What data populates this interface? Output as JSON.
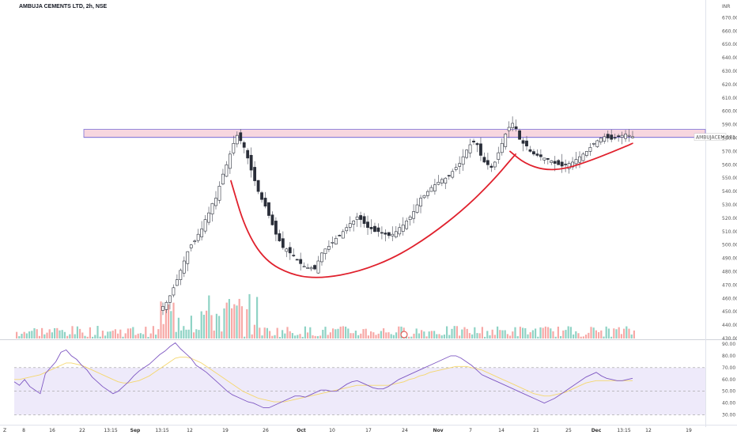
{
  "header": {
    "title": "AMBUJA CEMENTS LTD, 2h, NSE"
  },
  "chart_data": {
    "type": "candlestick",
    "currency_label": "INR",
    "price_axis": {
      "min": 430,
      "max": 675,
      "ticks": [
        "670.00",
        "660.00",
        "650.00",
        "640.00",
        "630.00",
        "620.00",
        "610.00",
        "600.00",
        "590.00",
        "580.00",
        "570.00",
        "560.00",
        "550.00",
        "540.00",
        "530.00",
        "520.00",
        "510.00",
        "500.00",
        "490.00",
        "480.00",
        "470.00",
        "460.00",
        "450.00",
        "440.00",
        "430.00"
      ]
    },
    "rsi_axis": {
      "min": 25,
      "max": 92,
      "ticks": [
        "90.00",
        "80.00",
        "70.00",
        "60.00",
        "50.00",
        "40.00",
        "30.00"
      ],
      "band": [
        30,
        70
      ],
      "mid": 50
    },
    "resistance_zone": {
      "low": 580.5,
      "high": 586.5,
      "label": "AMBUJACEM",
      "value": "581.35"
    },
    "x_axis": {
      "ticks": [
        "8",
        "16",
        "22",
        "13:15",
        "Sep",
        "13:15",
        "12",
        "19",
        "26",
        "Oct",
        "10",
        "17",
        "24",
        "Nov",
        "7",
        "14",
        "21",
        "25",
        "Dec",
        "13:15",
        "12",
        "19"
      ]
    },
    "price_series": [
      454,
      457,
      462,
      468,
      474,
      481,
      488,
      495,
      500,
      503,
      508,
      512,
      519,
      524,
      531,
      535,
      544,
      553,
      560,
      568,
      576,
      582,
      578,
      573,
      565,
      556,
      548,
      540,
      534,
      529,
      522,
      515,
      508,
      503,
      498,
      497,
      494,
      492,
      489,
      486,
      484,
      483,
      483,
      482,
      488,
      494,
      497,
      499,
      502,
      505,
      507,
      510,
      513,
      516,
      518,
      521,
      519,
      516,
      513,
      512,
      510,
      510,
      509,
      508,
      507,
      508,
      510,
      513,
      515,
      518,
      521,
      525,
      530,
      535,
      537,
      540,
      543,
      545,
      547,
      549,
      550,
      552,
      555,
      558,
      561,
      566,
      571,
      575,
      577,
      575,
      567,
      562,
      560,
      558,
      562,
      569,
      576,
      583,
      588,
      591,
      587,
      579,
      576,
      574,
      570,
      568,
      567,
      566,
      565,
      564,
      563,
      561,
      560,
      559,
      560,
      561,
      562,
      564,
      566,
      568,
      570,
      573,
      576,
      578,
      580,
      581,
      580,
      579,
      580,
      581,
      582,
      583,
      582,
      581
    ],
    "rsi_series": [
      58,
      55,
      60,
      54,
      51,
      48,
      65,
      70,
      75,
      83,
      85,
      80,
      77,
      72,
      68,
      62,
      58,
      54,
      51,
      48,
      50,
      54,
      58,
      63,
      67,
      70,
      73,
      77,
      81,
      84,
      88,
      91,
      86,
      82,
      78,
      72,
      69,
      66,
      62,
      58,
      54,
      50,
      47,
      45,
      43,
      41,
      40,
      38,
      36,
      36,
      38,
      40,
      42,
      44,
      46,
      46,
      45,
      47,
      49,
      51,
      51,
      50,
      50,
      53,
      56,
      58,
      59,
      57,
      55,
      53,
      52,
      52,
      54,
      57,
      60,
      62,
      64,
      66,
      68,
      70,
      72,
      74,
      76,
      78,
      80,
      80,
      78,
      75,
      72,
      68,
      64,
      62,
      60,
      58,
      56,
      54,
      52,
      50,
      48,
      46,
      44,
      42,
      40,
      42,
      44,
      47,
      50,
      53,
      56,
      59,
      62,
      64,
      66,
      63,
      61,
      60,
      59,
      59,
      60,
      61
    ],
    "rsi_ma_series": [
      60,
      60,
      61,
      62,
      63,
      64,
      66,
      68,
      70,
      72,
      74,
      74,
      73,
      72,
      70,
      68,
      66,
      64,
      62,
      60,
      58,
      57,
      57,
      58,
      59,
      61,
      63,
      66,
      69,
      72,
      75,
      78,
      79,
      79,
      78,
      76,
      74,
      71,
      68,
      65,
      62,
      59,
      56,
      53,
      50,
      48,
      46,
      44,
      43,
      42,
      41,
      41,
      41,
      42,
      43,
      44,
      45,
      46,
      47,
      48,
      49,
      50,
      51,
      52,
      53,
      54,
      55,
      55,
      55,
      55,
      55,
      55,
      55,
      56,
      57,
      58,
      60,
      61,
      63,
      64,
      66,
      67,
      68,
      69,
      70,
      71,
      71,
      71,
      70,
      69,
      68,
      66,
      64,
      62,
      60,
      58,
      56,
      54,
      52,
      50,
      48,
      47,
      46,
      46,
      47,
      48,
      49,
      51,
      53,
      55,
      57,
      58,
      59,
      59,
      59,
      59,
      59,
      59,
      59,
      59
    ],
    "cup_curves": [
      {
        "points": [
          [
            0.0,
            548
          ],
          [
            0.05,
            512
          ],
          [
            0.12,
            488
          ],
          [
            0.22,
            477
          ],
          [
            0.32,
            475
          ],
          [
            0.45,
            480
          ],
          [
            0.58,
            491
          ],
          [
            0.7,
            507
          ],
          [
            0.82,
            527
          ],
          [
            0.92,
            548
          ],
          [
            1.0,
            568
          ]
        ]
      },
      {
        "points": [
          [
            0.0,
            570
          ],
          [
            0.12,
            561
          ],
          [
            0.28,
            556
          ],
          [
            0.45,
            557
          ],
          [
            0.62,
            562
          ],
          [
            0.82,
            569
          ],
          [
            1.0,
            576
          ]
        ]
      }
    ]
  }
}
